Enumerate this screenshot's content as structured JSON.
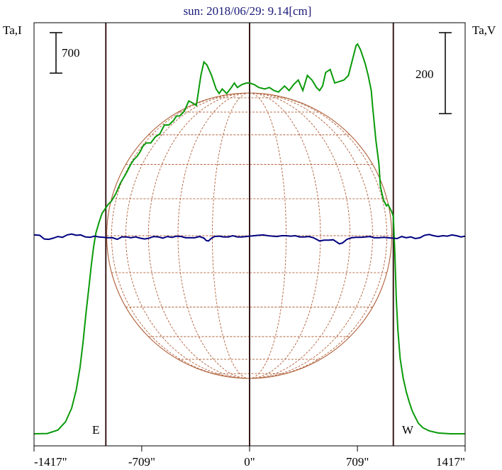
{
  "chart_data": {
    "type": "line",
    "title": "sun: 2018/06/29: 9.14[cm]",
    "ylabel_left": "Ta,I",
    "ylabel_right": "Ta,V",
    "scalebar_left": "700",
    "scalebar_right": "200",
    "limb_labels": {
      "east": "E",
      "west": "W"
    },
    "xlim": [
      -1417,
      1417
    ],
    "x_ticks": [
      -1417,
      -709,
      0,
      709,
      1417
    ],
    "x_tick_labels": [
      "-1417\"",
      "-709\"",
      "0\"",
      "709\"",
      "1417\""
    ],
    "vertical_lines": [
      -945,
      0,
      945
    ],
    "grid": false,
    "series": [
      {
        "name": "I",
        "color": "#0a9a0a",
        "x": [
          -1417,
          -1330,
          -1260,
          -1210,
          -1170,
          -1140,
          -1115,
          -1095,
          -1075,
          -1055,
          -1040,
          -1025,
          -1010,
          -990,
          -970,
          -950,
          -930,
          -910,
          -880,
          -850,
          -810,
          -780,
          -760,
          -740,
          -720,
          -700,
          -680,
          -650,
          -620,
          -590,
          -560,
          -530,
          -500,
          -480,
          -460,
          -430,
          -400,
          -380,
          -350,
          -320,
          -300,
          -280,
          -250,
          -220,
          -200,
          -180,
          -150,
          -120,
          -100,
          -80,
          -50,
          -20,
          0,
          30,
          60,
          100,
          130,
          160,
          190,
          230,
          260,
          290,
          320,
          350,
          380,
          410,
          440,
          460,
          480,
          500,
          530,
          560,
          590,
          620,
          650,
          680,
          700,
          710,
          730,
          760,
          780,
          800,
          810,
          830,
          850,
          860,
          880,
          900,
          910,
          925,
          935,
          945,
          955,
          965,
          975,
          990,
          1010,
          1030,
          1050,
          1070,
          1090,
          1110,
          1140,
          1180,
          1240,
          1320,
          1417
        ],
        "values": [
          30,
          32,
          55,
          110,
          200,
          320,
          470,
          640,
          840,
          1020,
          1160,
          1280,
          1370,
          1440,
          1500,
          1530,
          1560,
          1580,
          1630,
          1700,
          1770,
          1830,
          1860,
          1880,
          1910,
          1950,
          1970,
          1970,
          2010,
          2030,
          2090,
          2090,
          2120,
          2150,
          2150,
          2180,
          2250,
          2240,
          2220,
          2420,
          2510,
          2490,
          2420,
          2330,
          2300,
          2330,
          2300,
          2340,
          2370,
          2340,
          2360,
          2370,
          2370,
          2360,
          2340,
          2330,
          2340,
          2320,
          2310,
          2350,
          2320,
          2360,
          2390,
          2320,
          2420,
          2390,
          2340,
          2320,
          2350,
          2440,
          2460,
          2370,
          2380,
          2390,
          2420,
          2540,
          2620,
          2630,
          2590,
          2500,
          2420,
          2320,
          2200,
          1990,
          1830,
          1680,
          1590,
          1550,
          1560,
          1530,
          1510,
          1480,
          1230,
          920,
          720,
          530,
          400,
          310,
          240,
          180,
          140,
          100,
          70,
          50,
          35,
          30,
          30
        ]
      },
      {
        "name": "V",
        "color": "#000080",
        "x": [
          -1417,
          -1380,
          -1350,
          -1320,
          -1290,
          -1260,
          -1230,
          -1200,
          -1170,
          -1140,
          -1110,
          -1080,
          -1050,
          -1020,
          -990,
          -960,
          -930,
          -900,
          -870,
          -840,
          -810,
          -780,
          -750,
          -720,
          -690,
          -660,
          -630,
          -600,
          -570,
          -540,
          -510,
          -480,
          -450,
          -420,
          -390,
          -360,
          -330,
          -300,
          -285,
          -270,
          -250,
          -230,
          -200,
          -170,
          -140,
          -110,
          -80,
          -50,
          -20,
          0,
          30,
          60,
          90,
          120,
          150,
          180,
          210,
          240,
          270,
          300,
          330,
          360,
          390,
          420,
          440,
          460,
          490,
          520,
          550,
          570,
          590,
          610,
          640,
          670,
          700,
          730,
          760,
          790,
          820,
          850,
          880,
          910,
          940,
          970,
          1000,
          1030,
          1060,
          1090,
          1120,
          1150,
          1180,
          1210,
          1240,
          1270,
          1300,
          1330,
          1360,
          1390,
          1417
        ],
        "values": [
          2,
          1,
          -8,
          -9,
          -6,
          -2,
          -4,
          2,
          4,
          1,
          2,
          -3,
          -4,
          -1,
          -3,
          -4,
          -5,
          -5,
          -9,
          -3,
          -3,
          -5,
          -3,
          -6,
          -8,
          -6,
          -2,
          -3,
          -6,
          -2,
          -4,
          -1,
          -2,
          -5,
          -5,
          -5,
          -2,
          -6,
          -12,
          -13,
          -6,
          -2,
          -1,
          -3,
          -3,
          0,
          -3,
          -3,
          -2,
          -1,
          0,
          1,
          2,
          0,
          -1,
          -2,
          0,
          0,
          -1,
          0,
          -3,
          -3,
          -2,
          -5,
          -9,
          -13,
          -11,
          -11,
          -10,
          -15,
          -20,
          -18,
          -9,
          -5,
          -4,
          -4,
          -3,
          -2,
          -5,
          -5,
          -4,
          -5,
          -6,
          -7,
          -2,
          -5,
          -3,
          -7,
          -5,
          1,
          3,
          0,
          -2,
          0,
          -1,
          2,
          0,
          -3,
          -1
        ]
      }
    ],
    "colors": {
      "title": "#1a1a7a",
      "frame": "#000000",
      "limb_lines": "#3a1a1a",
      "disk": "#b0603a",
      "I": "#0a9a0a",
      "V": "#000080"
    }
  }
}
